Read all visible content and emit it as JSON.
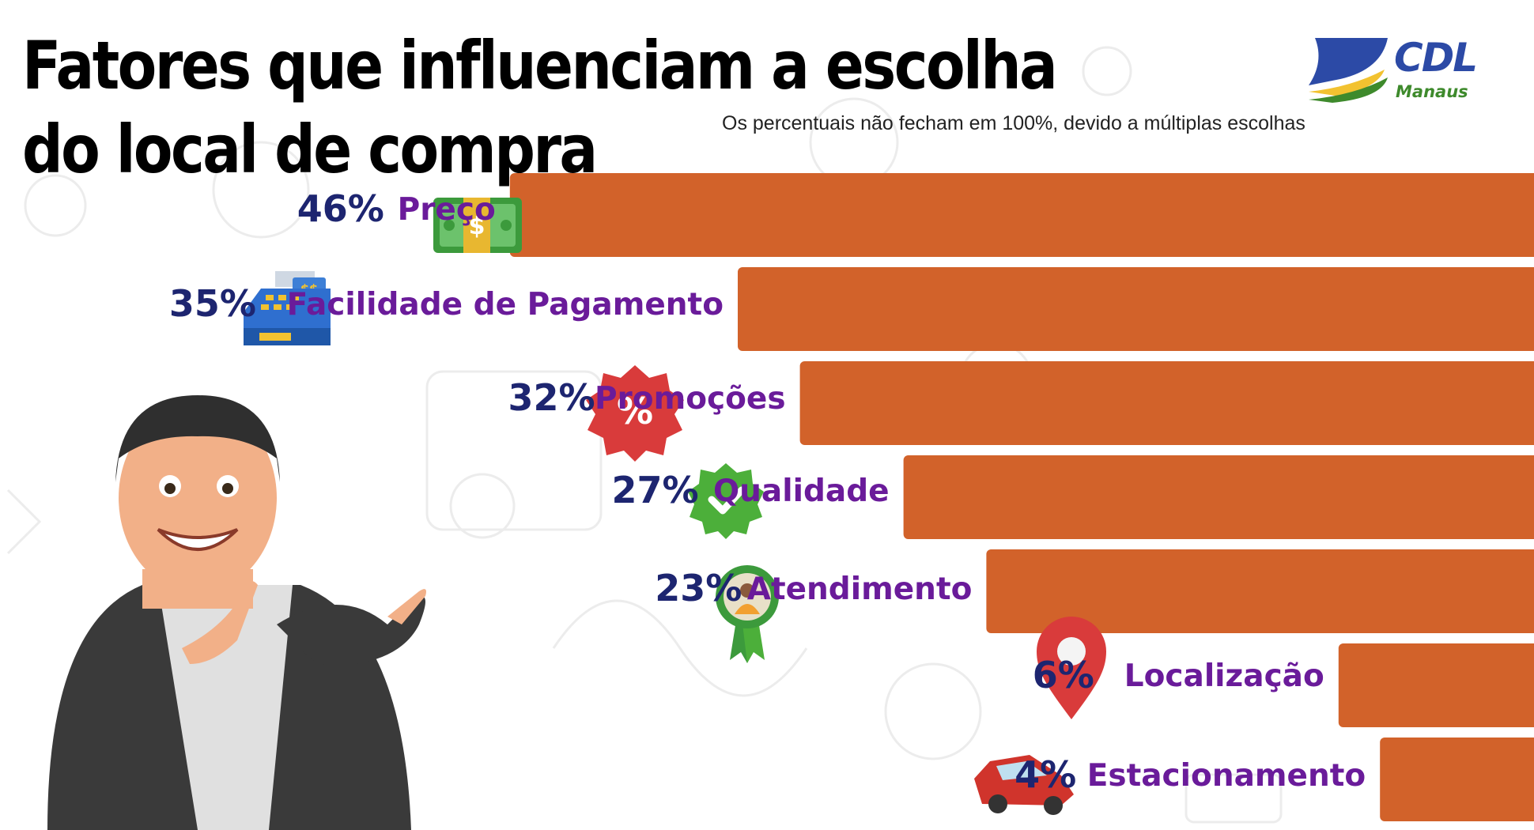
{
  "title": "Fatores que influenciam a escolha do local de compra",
  "subtitle": "Os percentuais não fecham em 100%, devido a múltiplas escolhas",
  "logo": {
    "name": "CDL",
    "sub": "Manaus"
  },
  "colors": {
    "bar": "#d2622a",
    "percent": "#1d2570",
    "label": "#6a1b9a"
  },
  "chart_data": {
    "type": "bar",
    "orientation": "horizontal",
    "categories": [
      "Preço",
      "Facilidade de Pagamento",
      "Promoções",
      "Qualidade",
      "Atendimento",
      "Localização",
      "Estacionamento"
    ],
    "values": [
      46,
      35,
      32,
      27,
      23,
      6,
      4
    ],
    "unit": "%",
    "icons": [
      "money-icon",
      "cash-register-icon",
      "discount-badge-icon",
      "check-badge-icon",
      "award-ribbon-icon",
      "location-pin-icon",
      "car-icon"
    ]
  }
}
